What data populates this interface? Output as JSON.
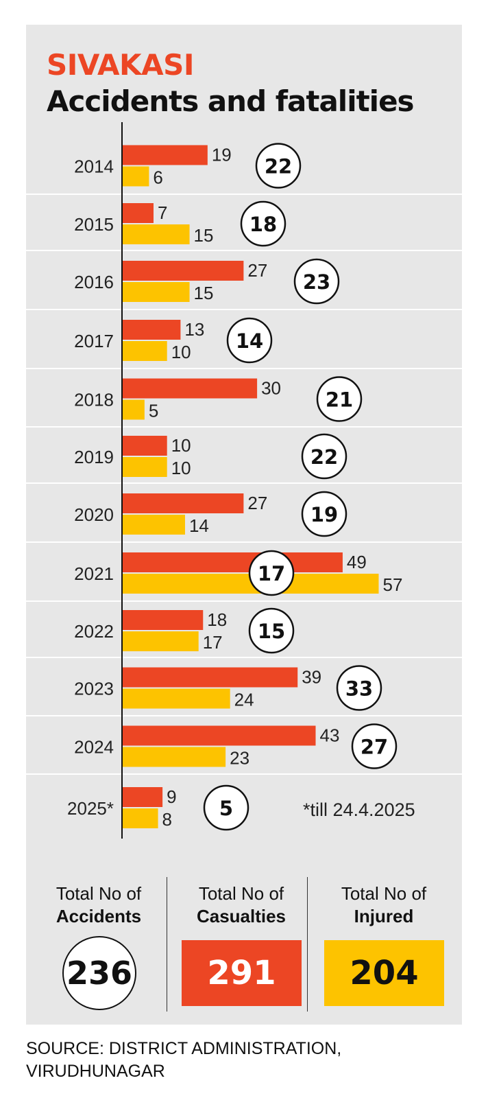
{
  "colors": {
    "accidents": "#ec4624",
    "injured": "#fdc300",
    "panel": "#e7e7e7"
  },
  "header": {
    "kicker": "SIVAKASI",
    "title": "Accidents and fatalities"
  },
  "note": "*till 24.4.2025",
  "chart_data": {
    "type": "bar",
    "orientation": "horizontal",
    "title": "Accidents and fatalities",
    "categories": [
      "2014",
      "2015",
      "2016",
      "2017",
      "2018",
      "2019",
      "2020",
      "2021",
      "2022",
      "2023",
      "2024",
      "2025*"
    ],
    "series": [
      {
        "values": [
          19,
          7,
          27,
          13,
          30,
          10,
          27,
          49,
          18,
          39,
          43,
          9
        ]
      },
      {
        "values": [
          6,
          15,
          15,
          10,
          5,
          10,
          14,
          57,
          17,
          24,
          23,
          8
        ]
      }
    ],
    "circled_values": [
      22,
      18,
      23,
      14,
      21,
      22,
      19,
      17,
      15,
      33,
      27,
      5
    ],
    "xlim": [
      0,
      60
    ]
  },
  "totals": {
    "accidents": {
      "label_line1": "Total No of",
      "label_line2": "Accidents",
      "value": "236"
    },
    "casualties": {
      "label_line1": "Total No of",
      "label_line2": "Casualties",
      "value": "291"
    },
    "injured": {
      "label_line1": "Total No of",
      "label_line2": "Injured",
      "value": "204"
    }
  },
  "source": {
    "line1": "SOURCE: DISTRICT ADMINISTRATION,",
    "line2": "VIRUDHUNAGAR"
  }
}
